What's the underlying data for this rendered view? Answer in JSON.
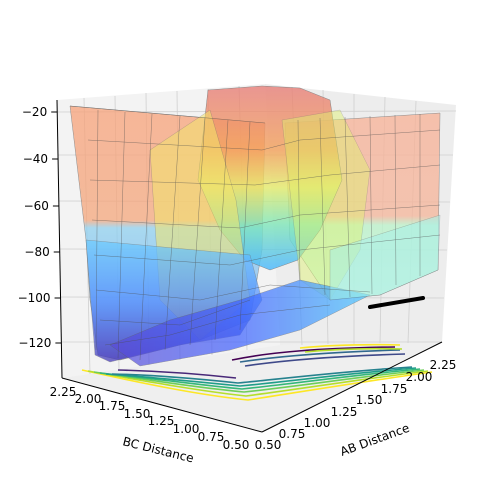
{
  "chart_data": {
    "type": "surface3d",
    "title": "",
    "xlabel": "AB Distance",
    "ylabel": "BC Distance",
    "zlabel": "",
    "x_ticks": [
      "0.50",
      "0.75",
      "1.00",
      "1.25",
      "1.50",
      "1.75",
      "2.00",
      "2.25"
    ],
    "y_ticks": [
      "0.50",
      "0.75",
      "1.00",
      "1.25",
      "1.50",
      "1.75",
      "2.00",
      "2.25"
    ],
    "z_ticks": [
      "−120",
      "−100",
      "−80",
      "−60",
      "−40",
      "−20"
    ],
    "xlim": [
      0.5,
      2.35
    ],
    "ylim": [
      0.5,
      2.35
    ],
    "zlim": [
      -136,
      -18
    ],
    "surface_colormap": "jet",
    "contour_colormap": "viridis",
    "surface_alpha": 0.35,
    "grid": true,
    "trajectory": {
      "description_visible": "black trajectory points near high AB distance",
      "x_range": [
        1.55,
        2.35
      ],
      "y_value": 0.9,
      "z_value": -102
    }
  }
}
